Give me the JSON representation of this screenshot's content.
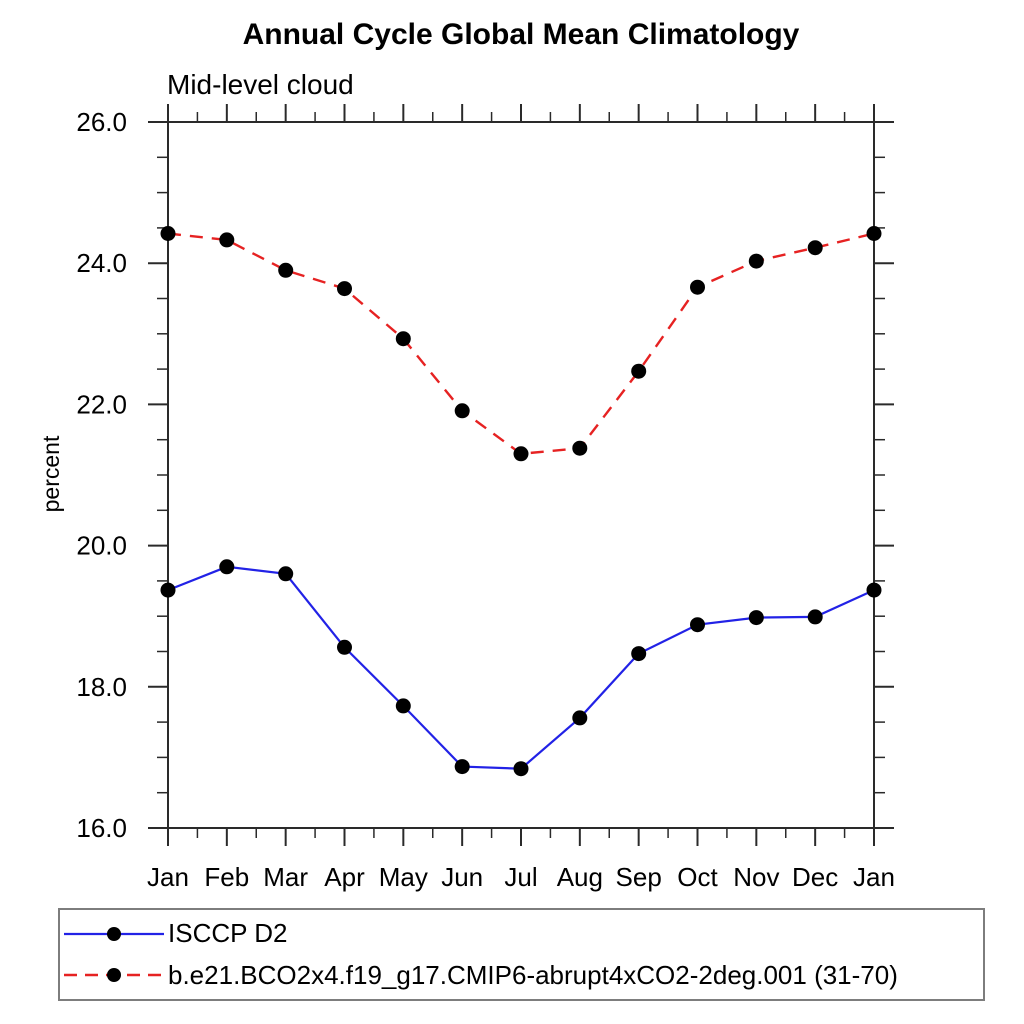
{
  "page": {
    "background": "#ffffff"
  },
  "chart_data": {
    "type": "line",
    "title": "Annual Cycle Global Mean Climatology",
    "subtitle": "Mid-level cloud",
    "xlabel": "",
    "ylabel": "percent",
    "ylim": [
      16.0,
      26.0
    ],
    "y_major_ticks": [
      16.0,
      18.0,
      20.0,
      22.0,
      24.0,
      26.0
    ],
    "y_tick_labels": [
      "16.0",
      "18.0",
      "20.0",
      "22.0",
      "24.0",
      "26.0"
    ],
    "y_minor_step": 0.5,
    "x_labels": [
      "Jan",
      "Feb",
      "Mar",
      "Apr",
      "May",
      "Jun",
      "Jul",
      "Aug",
      "Sep",
      "Oct",
      "Nov",
      "Dec",
      "Jan"
    ],
    "x_minor_ticks": "midpoints-between-months",
    "grid": false,
    "axis_color": "#2a2a2a",
    "legend_position": "bottom-left-box",
    "legend_border_color": "#7d7d7d",
    "marker": "filled-circle",
    "marker_color": "#000000",
    "series": [
      {
        "name": "ISCCP D2",
        "color": "#2222e6",
        "style": "solid",
        "values": [
          19.37,
          19.7,
          19.6,
          18.56,
          17.73,
          16.87,
          16.84,
          17.56,
          18.47,
          18.88,
          18.98,
          18.99,
          19.37
        ]
      },
      {
        "name": "b.e21.BCO2x4.f19_g17.CMIP6-abrupt4xCO2-2deg.001 (31-70)",
        "color": "#e62222",
        "style": "dashed",
        "values": [
          24.42,
          24.33,
          23.9,
          23.64,
          22.93,
          21.91,
          21.3,
          21.38,
          22.47,
          23.66,
          24.03,
          24.22,
          24.42
        ]
      }
    ]
  }
}
